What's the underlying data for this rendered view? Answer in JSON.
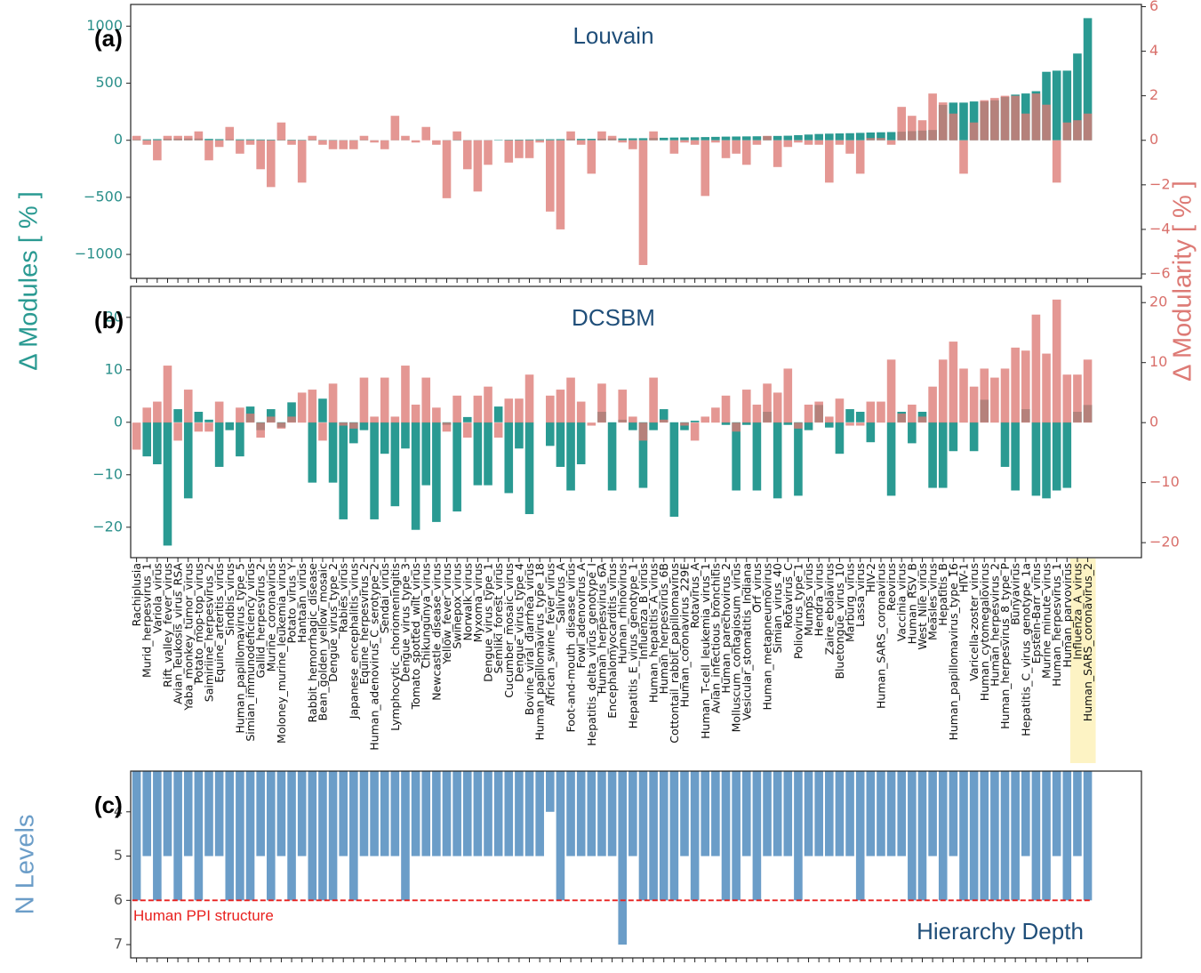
{
  "chart_data": [
    {
      "type": "bar",
      "panel_label": "(a)",
      "title": "Louvain",
      "ylabel": "Δ Modules [ % ]",
      "y2label": "Δ Modularity [ % ]",
      "ylim": [
        -1210,
        1190
      ],
      "yticks": [
        {
          "value": -1000,
          "label": "−1000"
        },
        {
          "value": -500,
          "label": "−500"
        },
        0,
        500,
        1000
      ],
      "y2lim": [
        -6.2,
        6.1
      ],
      "y2ticks": [
        {
          "value": -6,
          "label": "−6"
        },
        {
          "value": -4,
          "label": "−4"
        },
        {
          "value": -2,
          "label": "−2"
        },
        0,
        2,
        4,
        6
      ],
      "series": [
        {
          "name": "Δ Modules",
          "color": "#2a9a92",
          "values": [
            5,
            8,
            10,
            12,
            14,
            15,
            15,
            12,
            10,
            8,
            8,
            8,
            7,
            6,
            5,
            5,
            4,
            4,
            3,
            3,
            2,
            2,
            2,
            1,
            1,
            1,
            1,
            0,
            0,
            0,
            -2,
            -3,
            -3,
            -2,
            2,
            4,
            5,
            6,
            7,
            8,
            9,
            10,
            11,
            12,
            13,
            14,
            15,
            16,
            17,
            18,
            20,
            22,
            24,
            25,
            26,
            28,
            30,
            32,
            33,
            34,
            35,
            36,
            38,
            40,
            45,
            50,
            55,
            58,
            60,
            62,
            65,
            68,
            70,
            72,
            75,
            80,
            85,
            90,
            310,
            330,
            330,
            340,
            340,
            350,
            380,
            400,
            410,
            430,
            600,
            610,
            610,
            760,
            1070
          ]
        },
        {
          "name": "Δ Modularity",
          "color": "#dd7a75",
          "axis": "y2",
          "values": [
            0.2,
            -0.2,
            -0.9,
            0.2,
            0.2,
            0.2,
            0.4,
            -0.9,
            -0.3,
            0.6,
            -0.6,
            -0.2,
            -1.3,
            -2.1,
            0.8,
            -0.2,
            -1.9,
            0.2,
            -0.2,
            -0.4,
            -0.4,
            -0.4,
            0.2,
            -0.1,
            -0.4,
            1.1,
            0.2,
            -0.1,
            0.6,
            -0.2,
            -2.6,
            0.4,
            -1.3,
            -2.3,
            -1.1,
            0.0,
            -1.0,
            -0.8,
            -0.8,
            -0.1,
            -3.2,
            -4.0,
            0.4,
            -0.2,
            -1.5,
            0.4,
            0.2,
            -0.1,
            -0.4,
            -5.6,
            0.4,
            0.0,
            -0.6,
            -0.1,
            -0.2,
            -2.5,
            -0.1,
            -0.8,
            -0.6,
            -1.1,
            -0.2,
            0.2,
            -1.2,
            -0.3,
            -0.1,
            -0.2,
            -0.2,
            -1.9,
            -0.2,
            -0.6,
            -1.5,
            0.1,
            0.1,
            -0.2,
            1.5,
            1.1,
            0.9,
            2.1,
            1.7,
            1.2,
            -1.5,
            0.8,
            1.8,
            1.9,
            2.0,
            2.0,
            1.2,
            2.1,
            1.6,
            -1.9,
            0.8,
            0.9,
            1.2
          ]
        }
      ]
    },
    {
      "type": "bar",
      "panel_label": "(b)",
      "title": "DCSBM",
      "categories": [
        "Rachiplusia",
        "Murid_herpesvirus_1",
        "Variola_virus",
        "Rift_valley_fever_virus",
        "Avian_leukosis_virus_RSA",
        "Yaba_monkey_tumor_virus",
        "Potato_mop-top_virus",
        "Saimiriine_herpesvirus_2",
        "Equine_arteritis_virus",
        "Sindbis_virus",
        "Human_papillomavirus_type_5",
        "Simian_immunodeficiency_virus",
        "Gallid_herpesvirus_2",
        "Murine_coronavirus",
        "Moloney_murine_leukemia_virus",
        "Potato_virus_Y",
        "Hantaan_virus",
        "Rabbit_hemorrhagic_disease",
        "Bean_golden_yellow_mosaic",
        "Dengue_virus_type_2",
        "Rabies_virus",
        "Japanese_encephalitis_virus",
        "Equine_herpesvirus_2",
        "Human_adenovirus_C_serotype_2",
        "Sendai_virus",
        "Lymphocytic_choriomeningitis",
        "Dengue_virus_type_3",
        "Tomato_spotted_wilt_virus",
        "Chikungunya_virus",
        "Newcastle_disease_virus",
        "Yellow_fever_virus",
        "Swinepox_virus",
        "Norwalk_virus",
        "Myxoma_virus",
        "Dengue_virus_type_1",
        "Semliki_forest_virus",
        "Cucumber_mosaic_virus",
        "Dengue_virus_type_4",
        "Bovine_viral_diarrhea_virus",
        "Human_papillomavirus_type_18",
        "African_swine_fever_virus",
        "Salivirus_A",
        "Foot-and-mouth_disease_virus",
        "Fowl_adenovirus_A",
        "Hepatitis_delta_virus_genotype_I",
        "Human_herpesvirus_6A",
        "Encephalomyocarditis_virus",
        "Human_rhinovirus",
        "Hepatitis_E_virus_genotype_1",
        "Influenza_B_virus",
        "Human_hepatitis_A_virus",
        "Human_herpesvirus_6B",
        "Cottontail_rabbit_papillomavirus",
        "Human_coronavirus_229E",
        "Rotavirus_A",
        "Human_T-cell_leukemia_virus_1",
        "Avian_infectious_bronchitis",
        "Human_parechovirus_2",
        "Molluscum_contagiosum_virus",
        "Vesicular_stomatitis_Indiana",
        "Orf_virus",
        "Human_metapneumovirus",
        "Simian_virus_40",
        "Rotavirus_C",
        "Poliovirus_type_1",
        "Mumps_virus",
        "Hendra_virus",
        "Zaire_ebolavirus",
        "Bluetongue_virus_10",
        "Marburg_virus",
        "Lassa_virus",
        "HIV-2",
        "Human_SARS_coronavirus",
        "Reovirus",
        "Vaccinia_virus",
        "Human_RSV_B",
        "West_Nile_virus",
        "Measles_virus",
        "Hepatitis_B",
        "Human_papillomavirus_type_16",
        "HIV-1",
        "Varicella-zoster_virus",
        "Human_cytomegalovirus",
        "Human_herpesvirus_2",
        "Human_herpesvirus_8_type_P",
        "Bunyavirus",
        "Hepatitis_C_virus_genotype_1a",
        "Epstein-Barr_virus",
        "Murine_minute_virus",
        "Human_herpesvirus_1",
        "Human_parvovirus",
        "Influenza_A_virus",
        "Human_SARS_coronavirus_2"
      ],
      "highlight": [
        91,
        92
      ],
      "ylim": [
        -25.8,
        25.9
      ],
      "yticks": [
        {
          "value": -20,
          "label": "−20"
        },
        {
          "value": -10,
          "label": "−10"
        },
        0,
        10,
        20
      ],
      "y2lim": [
        -22.5,
        22.7
      ],
      "y2ticks": [
        {
          "value": -20,
          "label": "−20"
        },
        {
          "value": -10,
          "label": "−10"
        },
        0,
        10,
        20
      ],
      "series": [
        {
          "name": "Δ Modules",
          "color": "#2a9a92",
          "values": [
            0,
            -6.5,
            -8,
            -23.5,
            2.5,
            -14.5,
            2,
            0.5,
            -8.5,
            -1.5,
            -6.5,
            3,
            -1.5,
            2.5,
            -1,
            3.8,
            0,
            -11.5,
            4.5,
            -11.5,
            -18.5,
            -4,
            -1.5,
            -18.5,
            -6,
            -16,
            -5,
            -20.5,
            -12,
            -19,
            -0.5,
            -17,
            1,
            -12,
            -12,
            3,
            -13.5,
            -5,
            -17.5,
            0,
            -4.5,
            -8.5,
            -13,
            -8,
            0,
            2,
            -13,
            0.5,
            -1.5,
            -12.5,
            -1.5,
            2.5,
            -18,
            -1.5,
            0.3,
            0,
            0,
            -0.5,
            -13,
            -0.5,
            -13,
            2,
            -14.5,
            -0.5,
            -14,
            -1.5,
            3.3,
            -1,
            -6,
            2.5,
            2,
            -3.8,
            0,
            -14,
            2,
            -4,
            2,
            -12.5,
            -12.5,
            -5.5,
            0,
            -5.5,
            4.3,
            0,
            -8.5,
            -13,
            2.5,
            -14,
            -14.5,
            -13,
            -12.5,
            2,
            3.3
          ]
        },
        {
          "name": "Δ Modularity",
          "color": "#dd7a75",
          "axis": "y2",
          "values": [
            -4.5,
            2.5,
            3.5,
            9.5,
            -3,
            5.5,
            -1.5,
            -1.5,
            3.5,
            0,
            2.5,
            1.5,
            -2.5,
            1,
            -1,
            1,
            5,
            5.5,
            -3,
            6.5,
            -0.5,
            -1,
            7.5,
            1,
            7.5,
            1,
            9.5,
            3,
            7.5,
            2.5,
            -1.5,
            4.5,
            -2.5,
            4.5,
            6,
            -2.5,
            4,
            4,
            8,
            0,
            4.5,
            5.5,
            7.5,
            3.5,
            -0.5,
            6.5,
            0,
            5.5,
            1,
            -3,
            7.5,
            0.5,
            0,
            -0.5,
            -3,
            1,
            2.5,
            4.5,
            -1.5,
            5.5,
            3,
            6.5,
            5,
            9,
            -1,
            3,
            3.5,
            1,
            4,
            -0.5,
            -0.5,
            3.5,
            3.5,
            10.5,
            1.5,
            3,
            1,
            6,
            10.5,
            13.5,
            9,
            6,
            9,
            7.5,
            9,
            12.5,
            12,
            18,
            11.5,
            20.5,
            8,
            8,
            10.5
          ]
        }
      ]
    },
    {
      "type": "bar",
      "panel_label": "(c)",
      "title": "Hierarchy Depth",
      "ylabel": "N Levels",
      "y_inverted": true,
      "ylim": [
        3.08,
        7.3
      ],
      "yticks": [
        4,
        5,
        6,
        7
      ],
      "reference_line": {
        "value": 6,
        "label": "Human PPI structure",
        "color": "#e8201e"
      },
      "series": [
        {
          "name": "N Levels",
          "color": "#6b9dc8",
          "values": [
            6,
            5,
            6,
            5,
            6,
            5,
            6,
            5,
            5,
            6,
            6,
            6,
            5,
            6,
            5,
            6,
            5,
            6,
            6,
            6,
            5,
            6,
            5,
            5,
            5,
            5,
            6,
            5,
            5,
            5,
            5,
            5,
            5,
            5,
            5,
            5,
            5,
            5,
            5,
            5,
            4,
            6,
            5,
            5,
            5,
            5,
            5,
            7,
            5,
            6,
            6,
            6,
            6,
            5,
            6,
            5,
            5,
            6,
            6,
            5,
            6,
            5,
            5,
            5,
            6,
            5,
            5,
            5,
            5,
            5,
            6,
            5,
            5,
            5,
            5,
            6,
            6,
            5,
            6,
            5,
            6,
            6,
            6,
            6,
            6,
            6,
            5,
            6,
            6,
            5,
            6,
            5,
            6
          ]
        }
      ]
    }
  ]
}
